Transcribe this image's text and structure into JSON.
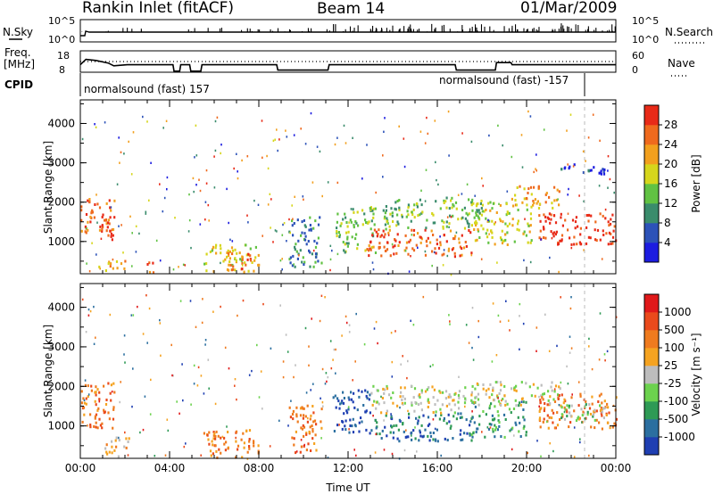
{
  "header": {
    "station": "Rankin Inlet (fitACF)",
    "beam": "Beam 14",
    "date": "01/Mar/2009"
  },
  "strip_labels": {
    "nsky": "N.Sky",
    "nsearch": "N.Search",
    "freq": "Freq.",
    "freq_unit": "[MHz]",
    "nave": "Nave",
    "cpid": "CPID",
    "nsky_ticks": [
      "10^5",
      "10^0"
    ],
    "nsearch_ticks": [
      "10^5",
      "10^0"
    ],
    "freq_ticks": [
      "18",
      "8"
    ],
    "nave_ticks": [
      "60",
      "0"
    ]
  },
  "cpid_segments": [
    {
      "label": "normalsound (fast) 157",
      "start_hour": 0.0,
      "end_hour": 22.6
    },
    {
      "label": "normalsound (fast) -157",
      "start_hour": 22.6,
      "end_hour": 24.0
    }
  ],
  "freq_trace": [
    [
      0.0,
      11.5
    ],
    [
      0.25,
      14.0
    ],
    [
      0.7,
      13.5
    ],
    [
      1.25,
      12.3
    ],
    [
      1.5,
      11.0
    ],
    [
      2.1,
      11.5
    ],
    [
      4.15,
      11.5
    ],
    [
      4.2,
      8.5
    ],
    [
      4.45,
      8.5
    ],
    [
      4.5,
      11.5
    ],
    [
      4.9,
      11.5
    ],
    [
      4.95,
      8.5
    ],
    [
      5.4,
      8.5
    ],
    [
      5.45,
      11.5
    ],
    [
      8.8,
      11.5
    ],
    [
      8.85,
      9.0
    ],
    [
      11.1,
      9.0
    ],
    [
      11.15,
      11.5
    ],
    [
      16.8,
      11.5
    ],
    [
      16.85,
      9.0
    ],
    [
      18.6,
      9.0
    ],
    [
      18.65,
      12.5
    ],
    [
      19.3,
      12.5
    ],
    [
      19.35,
      11.5
    ],
    [
      24.0,
      11.5
    ]
  ],
  "nave_dotted_level": 30,
  "chart_data": [
    {
      "type": "heatmap",
      "title": "",
      "xlabel": "",
      "ylabel": "Slant Range [km]",
      "xlim": [
        0,
        24
      ],
      "ylim": [
        180,
        4600
      ],
      "x_ticks": [
        0,
        4,
        8,
        12,
        16,
        20,
        24
      ],
      "y_ticks": [
        1000,
        2000,
        3000,
        4000
      ],
      "y_tick_labels": [
        "1000",
        "2000",
        "3000",
        "4000"
      ],
      "colorbar": {
        "label": "Power [dB]",
        "tick_labels": [
          "4",
          "8",
          "12",
          "16",
          "20",
          "24",
          "28"
        ],
        "colors": [
          "#1c1ce0",
          "#2c52b8",
          "#3a8c6c",
          "#61c243",
          "#d6d61c",
          "#f2a01e",
          "#ef6a1e",
          "#e82a18"
        ]
      },
      "regions": [
        {
          "t": [
            0.0,
            1.5
          ],
          "r": [
            1200,
            2100
          ],
          "level": 6
        },
        {
          "t": [
            0.8,
            1.5
          ],
          "r": [
            1000,
            1700
          ],
          "level": 7
        },
        {
          "t": [
            0.8,
            2.0
          ],
          "r": [
            180,
            500
          ],
          "level": 5
        },
        {
          "t": [
            2.9,
            3.3
          ],
          "r": [
            180,
            600
          ],
          "level": 6
        },
        {
          "t": [
            5.5,
            8.0
          ],
          "r": [
            180,
            900
          ],
          "level": 4
        },
        {
          "t": [
            6.5,
            7.6
          ],
          "r": [
            200,
            700
          ],
          "level": 6
        },
        {
          "t": [
            9.3,
            10.8
          ],
          "r": [
            300,
            1600
          ],
          "level": 2
        },
        {
          "t": [
            11.4,
            13.2
          ],
          "r": [
            700,
            1900
          ],
          "level": 3
        },
        {
          "t": [
            12.8,
            17.5
          ],
          "r": [
            600,
            1300
          ],
          "level": 6
        },
        {
          "t": [
            13.5,
            18.0
          ],
          "r": [
            1300,
            2100
          ],
          "level": 3
        },
        {
          "t": [
            17.5,
            20.2
          ],
          "r": [
            900,
            2000
          ],
          "level": 4
        },
        {
          "t": [
            19.3,
            21.5
          ],
          "r": [
            1800,
            2400
          ],
          "level": 5
        },
        {
          "t": [
            20.5,
            24.0
          ],
          "r": [
            900,
            1700
          ],
          "level": 7
        },
        {
          "t": [
            21.0,
            23.6
          ],
          "r": [
            2700,
            2950
          ],
          "level": 1
        }
      ]
    },
    {
      "type": "heatmap",
      "title": "",
      "xlabel": "Time UT",
      "ylabel": "Slant Range [km]",
      "xlim": [
        0,
        24
      ],
      "ylim": [
        180,
        4600
      ],
      "x_ticks": [
        0,
        4,
        8,
        12,
        16,
        20,
        24
      ],
      "x_tick_labels": [
        "00:00",
        "04:00",
        "08:00",
        "12:00",
        "16:00",
        "20:00",
        "00:00"
      ],
      "y_ticks": [
        1000,
        2000,
        3000,
        4000
      ],
      "y_tick_labels": [
        "1000",
        "2000",
        "3000",
        "4000"
      ],
      "colorbar": {
        "label": "Velocity [m s⁻¹]",
        "tick_labels": [
          "1000",
          "500",
          "100",
          "25",
          "-25",
          "-100",
          "-500",
          "-1000"
        ],
        "colors": [
          "#1f3fb2",
          "#2b6fa0",
          "#2e9a55",
          "#6cd24e",
          "#bdbdbd",
          "#f5a321",
          "#ef7b1f",
          "#ea4a1c",
          "#e0191a"
        ]
      },
      "regions": [
        {
          "t": [
            0.0,
            1.5
          ],
          "r": [
            900,
            2100
          ],
          "level": 6
        },
        {
          "t": [
            1.0,
            2.2
          ],
          "r": [
            200,
            700
          ],
          "level": 5
        },
        {
          "t": [
            5.5,
            8.0
          ],
          "r": [
            180,
            900
          ],
          "level": 6
        },
        {
          "t": [
            9.3,
            10.8
          ],
          "r": [
            300,
            1500
          ],
          "level": 6
        },
        {
          "t": [
            11.3,
            13.0
          ],
          "r": [
            800,
            1900
          ],
          "level": 0
        },
        {
          "t": [
            13.0,
            17.5
          ],
          "r": [
            600,
            1300
          ],
          "level": 1
        },
        {
          "t": [
            13.0,
            17.0
          ],
          "r": [
            1300,
            2000
          ],
          "level": 4
        },
        {
          "t": [
            17.5,
            20.0
          ],
          "r": [
            700,
            1600
          ],
          "level": 2
        },
        {
          "t": [
            17.0,
            21.5
          ],
          "r": [
            1500,
            2100
          ],
          "level": 4
        },
        {
          "t": [
            20.5,
            24.0
          ],
          "r": [
            900,
            1800
          ],
          "level": 6
        },
        {
          "t": [
            21.5,
            23.5
          ],
          "r": [
            1100,
            1600
          ],
          "level": 3
        }
      ]
    }
  ],
  "axis_titles": {
    "time": "Time UT",
    "range": "Slant Range [km]",
    "power": "Power [dB]",
    "velocity": "Velocity [m s⁻¹]"
  }
}
